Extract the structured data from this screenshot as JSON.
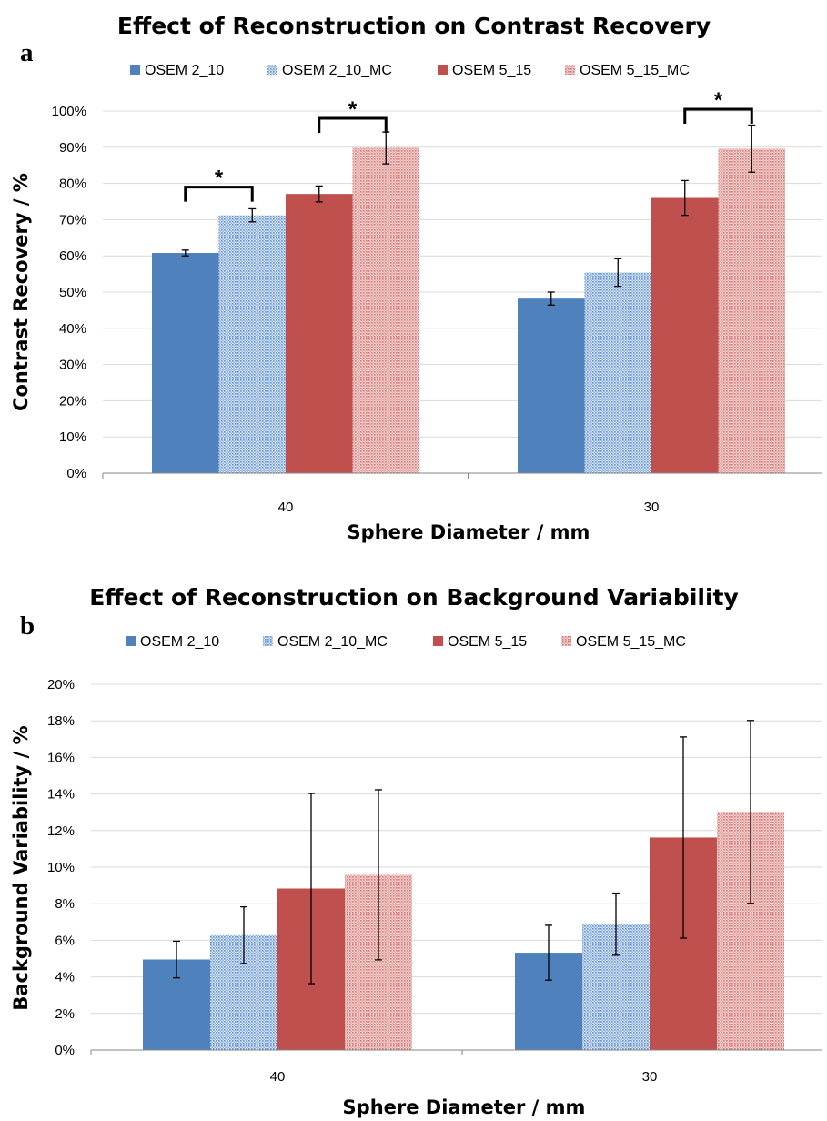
{
  "colors": {
    "blue": "#4f81bd",
    "red": "#c0504d",
    "blue_pattern": "#5b8fd6",
    "red_pattern": "#d9706e"
  },
  "chart_data": [
    {
      "panel": "a",
      "type": "bar",
      "title": "Effect of Reconstruction on Contrast Recovery",
      "xlabel": "Sphere Diameter / mm",
      "ylabel": "Contrast Recovery / %",
      "categories": [
        "40",
        "30"
      ],
      "ylim": [
        0,
        100
      ],
      "ytick_step": 10,
      "yticks": [
        "0%",
        "10%",
        "20%",
        "30%",
        "40%",
        "50%",
        "60%",
        "70%",
        "80%",
        "90%",
        "100%"
      ],
      "grid": true,
      "legend_position": "top",
      "series": [
        {
          "name": "OSEM 2_10",
          "values": [
            60.8,
            48.2
          ],
          "errors": [
            0.8,
            1.8
          ],
          "fill": "solid",
          "color": "blue"
        },
        {
          "name": "OSEM 2_10_MC",
          "values": [
            71.2,
            55.4
          ],
          "errors": [
            1.8,
            3.8
          ],
          "fill": "pattern",
          "color": "blue"
        },
        {
          "name": "OSEM 5_15",
          "values": [
            77.1,
            76.0
          ],
          "errors": [
            2.2,
            4.8
          ],
          "fill": "solid",
          "color": "red"
        },
        {
          "name": "OSEM 5_15_MC",
          "values": [
            89.8,
            89.6
          ],
          "errors": [
            4.4,
            6.5
          ],
          "fill": "pattern",
          "color": "red"
        }
      ],
      "significance": [
        {
          "category": 0,
          "from_series": 0,
          "to_series": 1,
          "label": "*",
          "level": 79
        },
        {
          "category": 0,
          "from_series": 2,
          "to_series": 3,
          "label": "*",
          "level": 98
        },
        {
          "category": 1,
          "from_series": 2,
          "to_series": 3,
          "label": "*",
          "level": 100.5
        }
      ]
    },
    {
      "panel": "b",
      "type": "bar",
      "title": "Effect of Reconstruction on Background Variability",
      "xlabel": "Sphere Diameter / mm",
      "ylabel": "Background Variability / %",
      "categories": [
        "40",
        "30"
      ],
      "ylim": [
        0,
        20
      ],
      "ytick_step": 2,
      "yticks": [
        "0%",
        "2%",
        "4%",
        "6%",
        "8%",
        "10%",
        "12%",
        "14%",
        "16%",
        "18%",
        "20%"
      ],
      "grid": true,
      "legend_position": "top",
      "series": [
        {
          "name": "OSEM 2_10",
          "values": [
            4.95,
            5.32
          ],
          "errors": [
            1.0,
            1.5
          ],
          "fill": "solid",
          "color": "blue"
        },
        {
          "name": "OSEM 2_10_MC",
          "values": [
            6.28,
            6.88
          ],
          "errors": [
            1.55,
            1.7
          ],
          "fill": "pattern",
          "color": "blue"
        },
        {
          "name": "OSEM 5_15",
          "values": [
            8.83,
            11.62
          ],
          "errors": [
            5.2,
            5.5
          ],
          "fill": "solid",
          "color": "red"
        },
        {
          "name": "OSEM 5_15_MC",
          "values": [
            9.58,
            13.02
          ],
          "errors": [
            4.65,
            5.0
          ],
          "fill": "pattern",
          "color": "red"
        }
      ],
      "significance": []
    }
  ]
}
